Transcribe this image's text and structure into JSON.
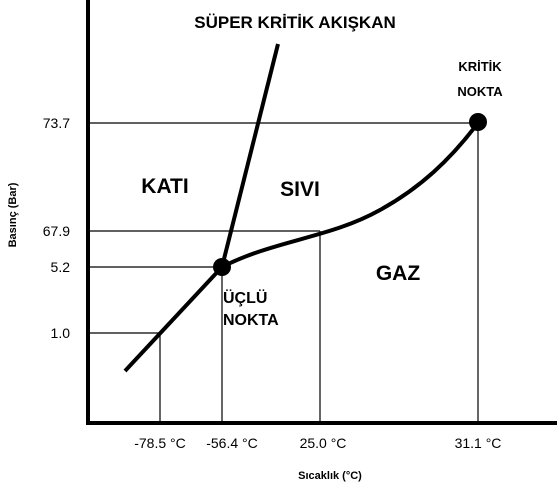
{
  "title": "SÜPER KRİTİK AKIŞKAN",
  "regions": [
    "KATI",
    "SIVI",
    "GAZ"
  ],
  "critical_point": [
    "KRİTİK",
    "NOKTA"
  ],
  "triple_point": [
    "ÜÇLÜ",
    "NOKTA"
  ],
  "y_axis": {
    "label": "Basınç (Bar)",
    "ticks": [
      "73.7",
      "67.9",
      "5.2",
      "1.0"
    ]
  },
  "x_axis": {
    "label": "Sıcaklık (°C)",
    "ticks": [
      "-78.5 °C",
      "-56.4 °C",
      "25.0 °C",
      "31.1 °C"
    ]
  }
}
